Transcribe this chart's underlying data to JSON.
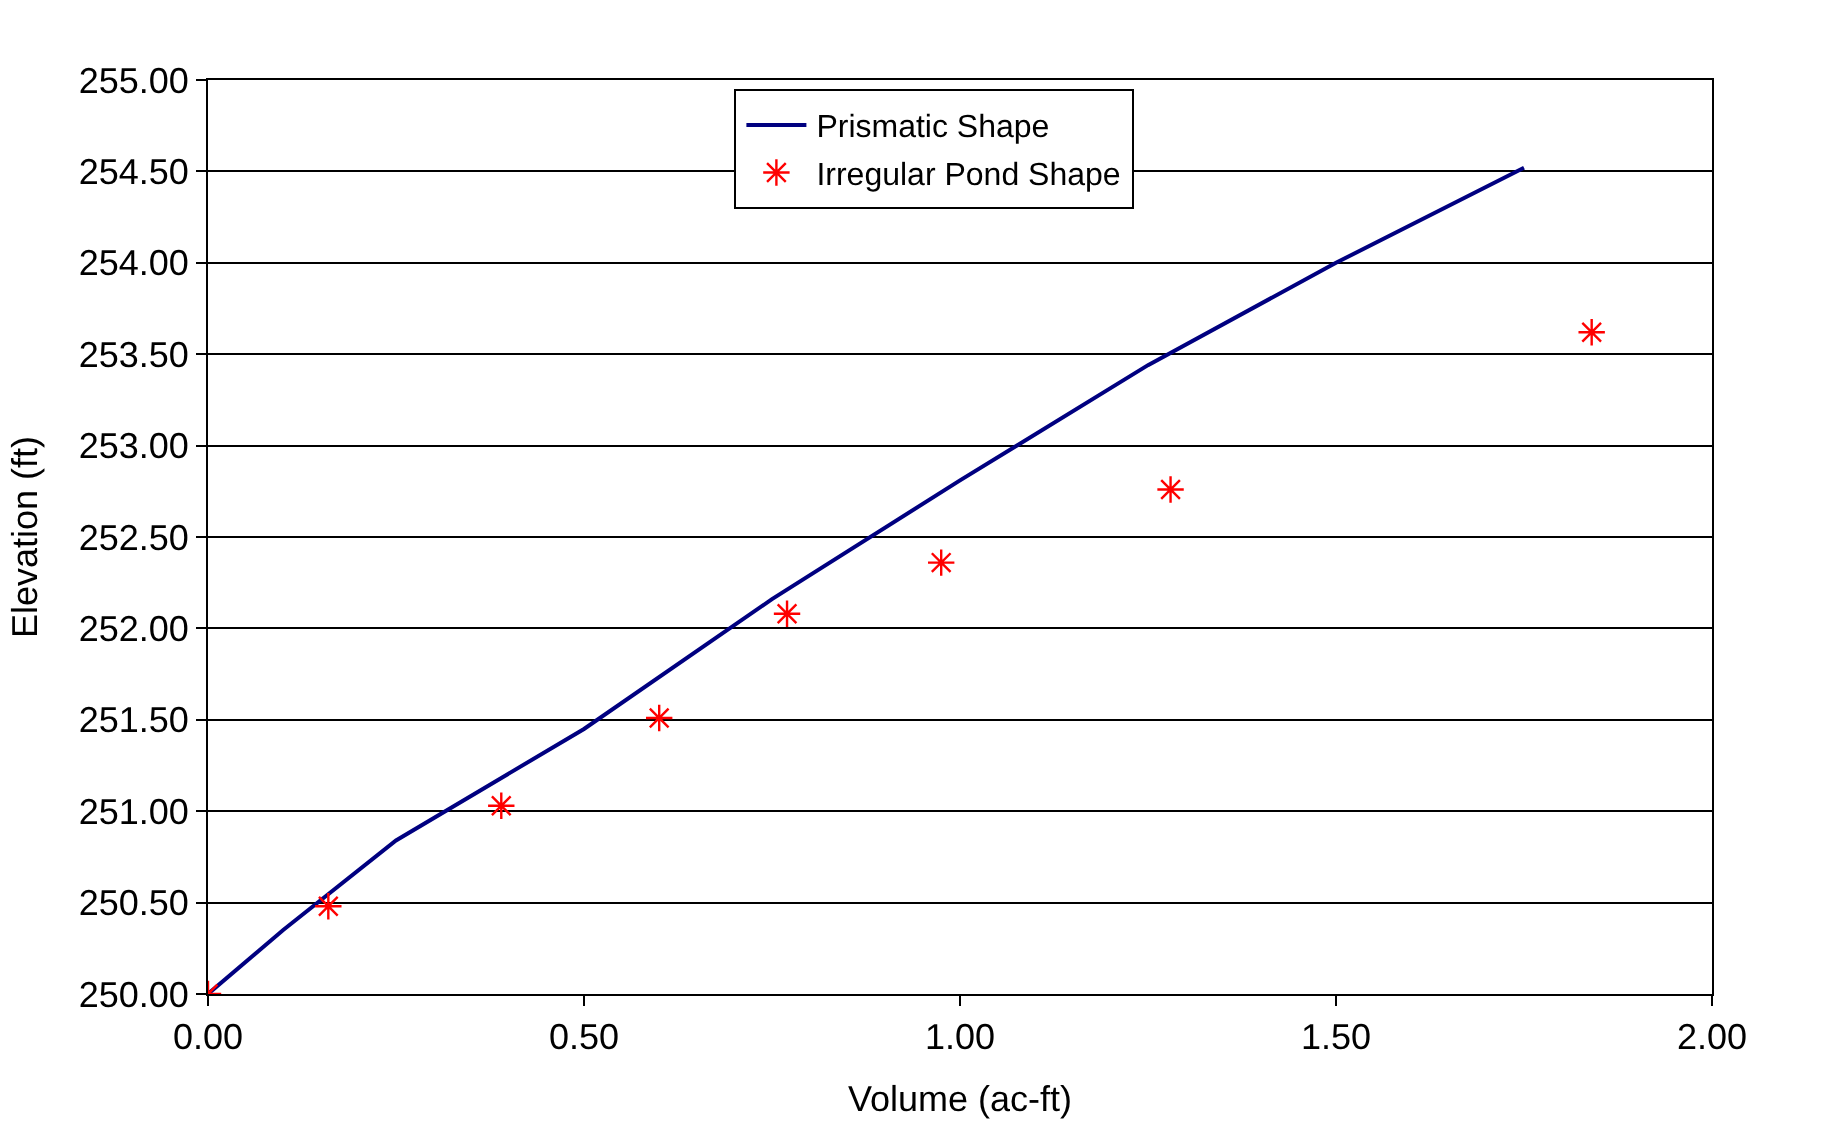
{
  "chart_data": {
    "type": "line",
    "xlabel": "Volume (ac-ft)",
    "ylabel": "Elevation (ft)",
    "xlim": [
      0,
      2
    ],
    "xticks": [
      {
        "value": 0,
        "label": "0.00"
      },
      {
        "value": 0.5,
        "label": "0.50"
      },
      {
        "value": 1,
        "label": "1.00"
      },
      {
        "value": 1.5,
        "label": "1.50"
      },
      {
        "value": 2,
        "label": "2.00"
      }
    ],
    "ylim": [
      250,
      255
    ],
    "yticks": [
      {
        "value": 250,
        "label": "250.00"
      },
      {
        "value": 250.5,
        "label": "250.50"
      },
      {
        "value": 251,
        "label": "251.00"
      },
      {
        "value": 251.5,
        "label": "251.50"
      },
      {
        "value": 252,
        "label": "252.00"
      },
      {
        "value": 252.5,
        "label": "252.50"
      },
      {
        "value": 253,
        "label": "253.00"
      },
      {
        "value": 253.5,
        "label": "253.50"
      },
      {
        "value": 254,
        "label": "254.00"
      },
      {
        "value": 254.5,
        "label": "254.50"
      },
      {
        "value": 255,
        "label": "255.00"
      }
    ],
    "grid": "y",
    "legend": "top",
    "series": [
      {
        "name": "Prismatic Shape",
        "color": "#000080",
        "marker": "none",
        "x": [
          0,
          0.1,
          0.25,
          0.5,
          0.75,
          1.0,
          1.25,
          1.5,
          1.75
        ],
        "values": [
          250.0,
          250.35,
          250.84,
          251.45,
          252.16,
          252.81,
          253.44,
          254.0,
          254.52
        ]
      },
      {
        "name": "Irregular Pond Shape",
        "type": "scatter",
        "color": "#ff0000",
        "marker": "cross",
        "x": [
          0,
          0.16,
          0.39,
          0.6,
          0.77,
          0.975,
          1.28,
          1.84
        ],
        "values": [
          250.0,
          250.48,
          251.03,
          251.51,
          252.08,
          252.36,
          252.76,
          253.62
        ]
      }
    ]
  }
}
